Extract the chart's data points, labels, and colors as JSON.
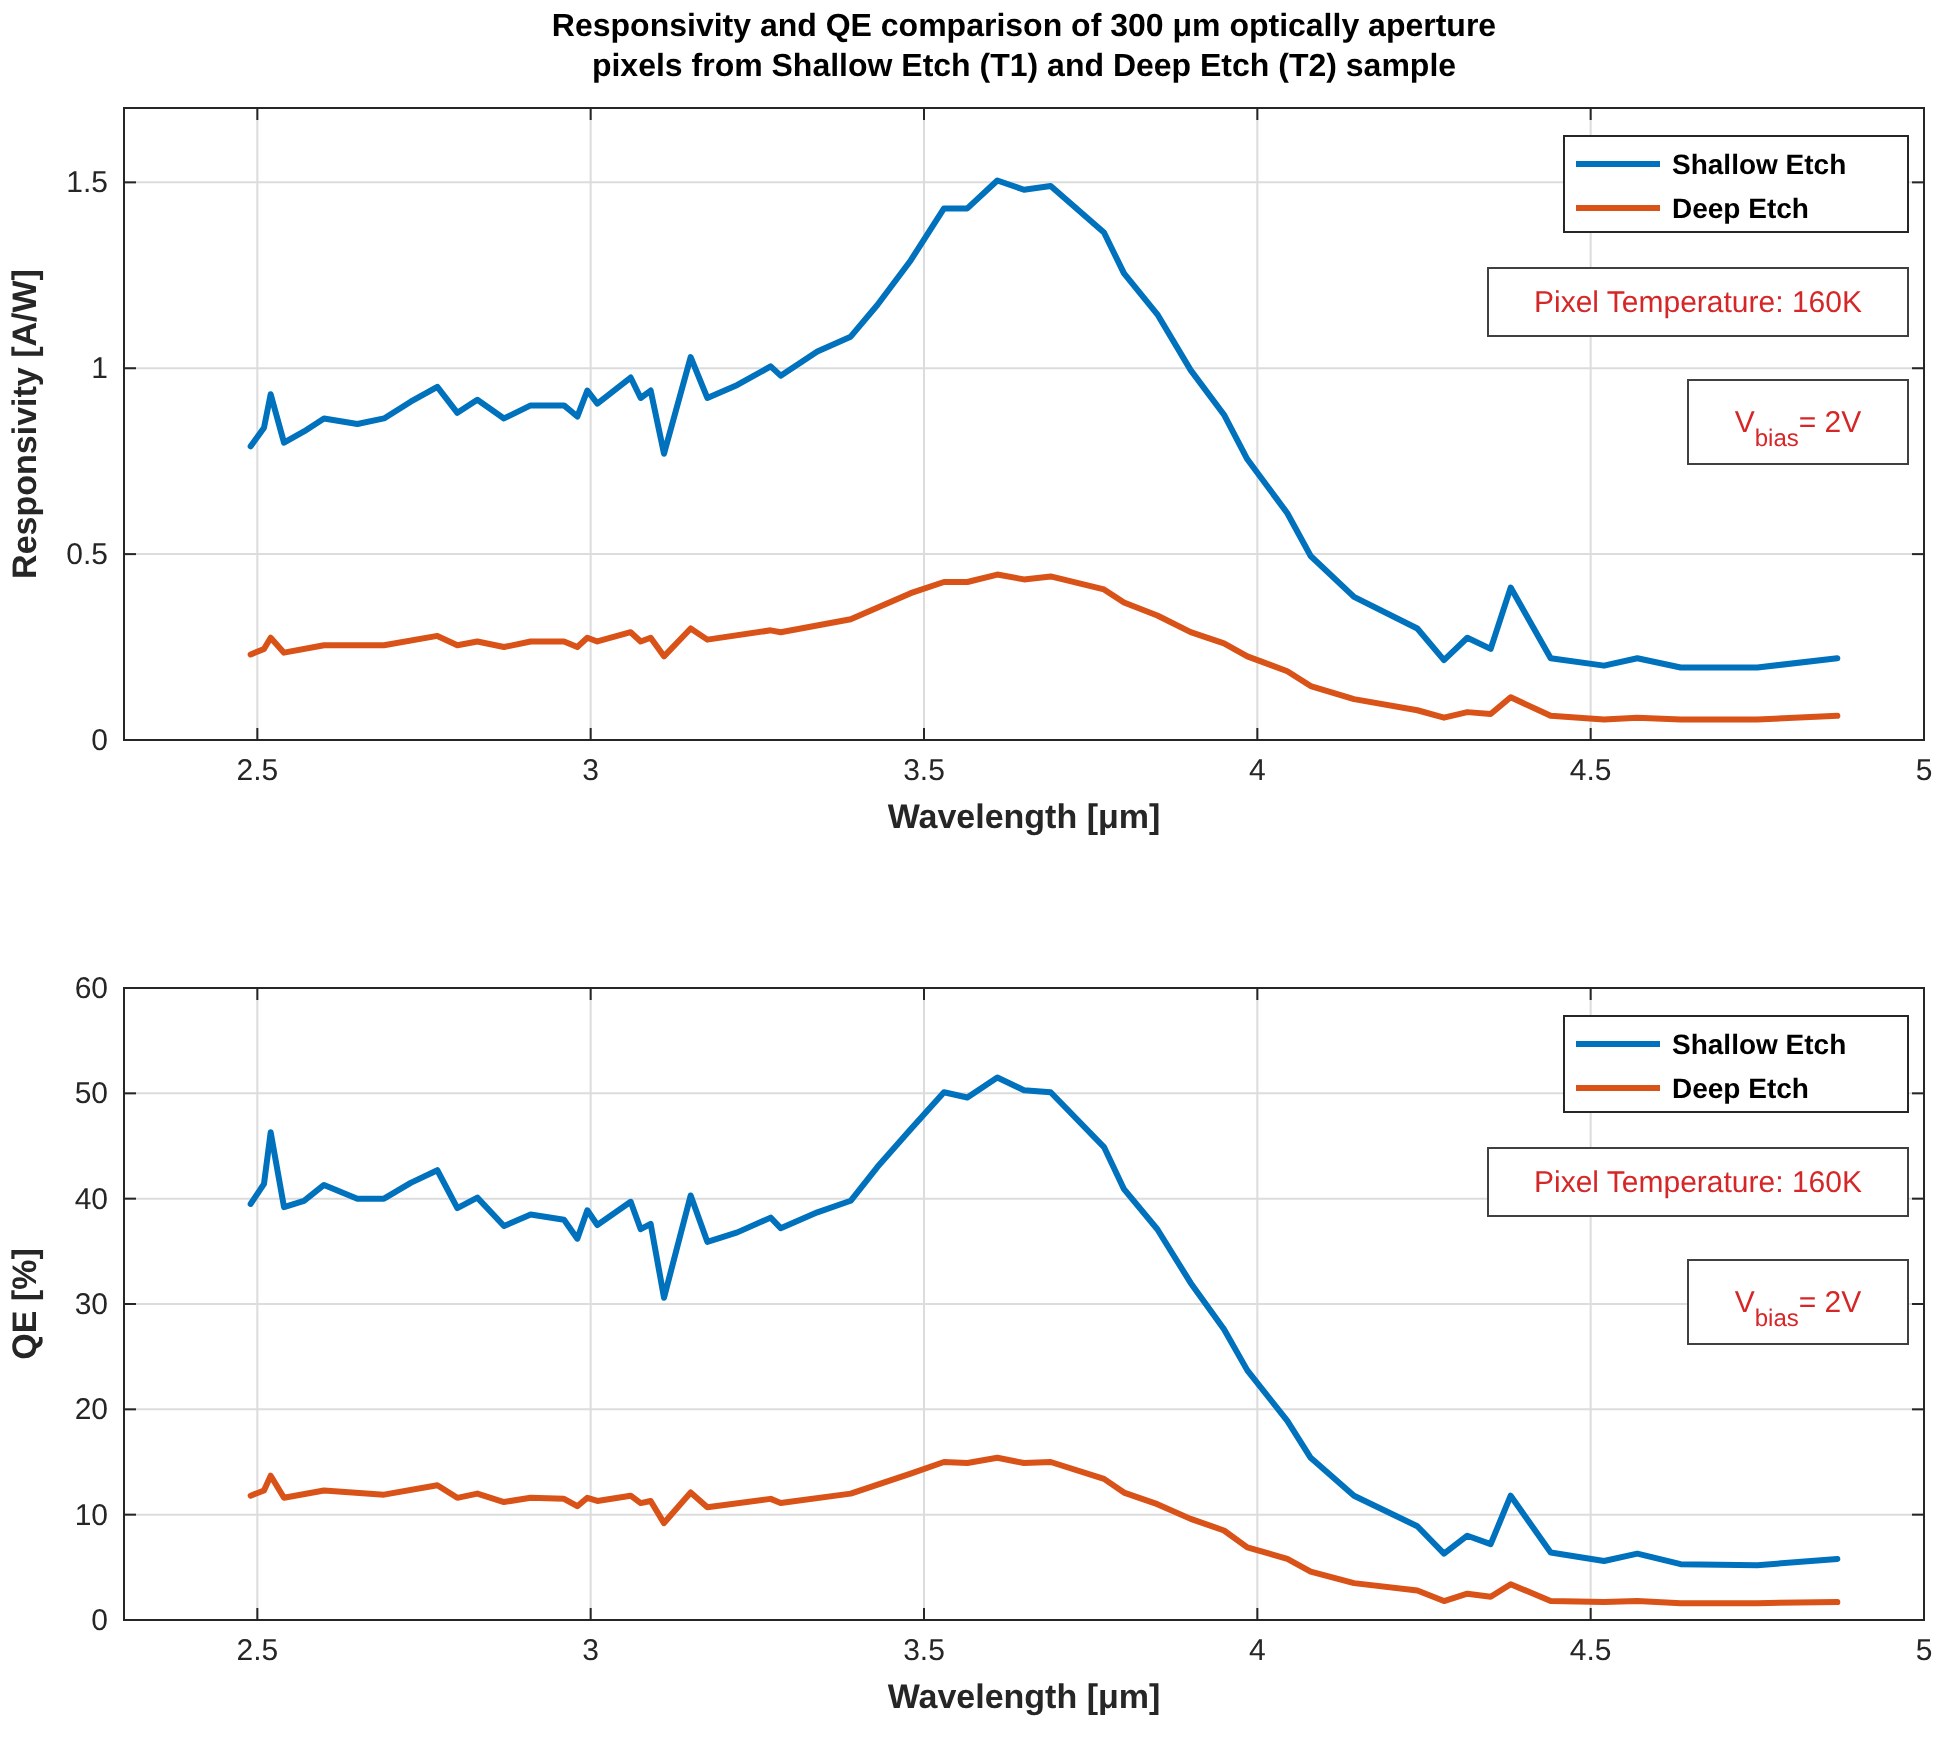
{
  "chart_data": [
    {
      "type": "line",
      "title": "Responsivity and QE comparison of 300 μm optically aperture\npixels from Shallow Etch (T1) and Deep Etch (T2) sample",
      "xlabel": "Wavelength [μm]",
      "ylabel": "Responsivity [A/W]",
      "xlim": [
        2.3,
        5
      ],
      "xticks": [
        2.5,
        3,
        3.5,
        4,
        4.5,
        5
      ],
      "ylim": [
        0,
        1.7
      ],
      "yticks": [
        0,
        0.5,
        1,
        1.5
      ],
      "grid": true,
      "legend": "top right",
      "line_style": "solid",
      "annotations": [
        "Pixel Temperature: 160K",
        "V$_{bias}$= 2V"
      ],
      "series": [
        {
          "name": "Shallow Etch",
          "color": "#0072bd",
          "x": [
            2.49,
            2.51,
            2.52,
            2.54,
            2.57,
            2.6,
            2.65,
            2.69,
            2.73,
            2.77,
            2.8,
            2.83,
            2.87,
            2.91,
            2.96,
            2.98,
            2.995,
            3.01,
            3.06,
            3.075,
            3.09,
            3.11,
            3.15,
            3.175,
            3.22,
            3.27,
            3.285,
            3.34,
            3.39,
            3.43,
            3.48,
            3.53,
            3.565,
            3.61,
            3.65,
            3.69,
            3.77,
            3.8,
            3.85,
            3.9,
            3.95,
            3.985,
            4.045,
            4.08,
            4.145,
            4.24,
            4.28,
            4.315,
            4.35,
            4.38,
            4.44,
            4.52,
            4.57,
            4.635,
            4.75,
            4.87
          ],
          "values": [
            0.79,
            0.84,
            0.93,
            0.8,
            0.83,
            0.865,
            0.85,
            0.865,
            0.91,
            0.95,
            0.88,
            0.915,
            0.865,
            0.9,
            0.9,
            0.87,
            0.94,
            0.905,
            0.975,
            0.92,
            0.94,
            0.77,
            1.03,
            0.92,
            0.955,
            1.005,
            0.98,
            1.045,
            1.085,
            1.17,
            1.29,
            1.43,
            1.43,
            1.505,
            1.48,
            1.49,
            1.365,
            1.255,
            1.145,
            0.995,
            0.875,
            0.755,
            0.61,
            0.495,
            0.385,
            0.3,
            0.215,
            0.275,
            0.245,
            0.41,
            0.22,
            0.2,
            0.22,
            0.195,
            0.195,
            0.22
          ]
        },
        {
          "name": "Deep Etch",
          "color": "#d95319",
          "x": [
            2.49,
            2.51,
            2.52,
            2.54,
            2.6,
            2.69,
            2.77,
            2.8,
            2.83,
            2.87,
            2.91,
            2.96,
            2.98,
            2.995,
            3.01,
            3.06,
            3.075,
            3.09,
            3.11,
            3.15,
            3.175,
            3.27,
            3.285,
            3.39,
            3.48,
            3.53,
            3.565,
            3.61,
            3.65,
            3.69,
            3.77,
            3.8,
            3.85,
            3.9,
            3.95,
            3.985,
            4.045,
            4.08,
            4.145,
            4.24,
            4.28,
            4.315,
            4.35,
            4.38,
            4.44,
            4.52,
            4.57,
            4.635,
            4.75,
            4.87
          ],
          "values": [
            0.23,
            0.245,
            0.275,
            0.235,
            0.255,
            0.255,
            0.28,
            0.255,
            0.265,
            0.25,
            0.265,
            0.265,
            0.25,
            0.275,
            0.265,
            0.29,
            0.265,
            0.275,
            0.225,
            0.3,
            0.27,
            0.295,
            0.29,
            0.325,
            0.395,
            0.425,
            0.425,
            0.445,
            0.432,
            0.44,
            0.405,
            0.37,
            0.335,
            0.29,
            0.26,
            0.225,
            0.185,
            0.145,
            0.11,
            0.08,
            0.06,
            0.075,
            0.07,
            0.115,
            0.065,
            0.055,
            0.06,
            0.055,
            0.055,
            0.065
          ]
        }
      ]
    },
    {
      "type": "line",
      "xlabel": "Wavelength [μm]",
      "ylabel": "QE [%]",
      "xlim": [
        2.3,
        5
      ],
      "xticks": [
        2.5,
        3,
        3.5,
        4,
        4.5,
        5
      ],
      "ylim": [
        0,
        60
      ],
      "yticks": [
        0,
        10,
        20,
        30,
        40,
        50,
        60
      ],
      "grid": true,
      "legend": "top right",
      "line_style": "solid",
      "annotations": [
        "Pixel Temperature: 160K",
        "V$_{bias}$= 2V"
      ],
      "series": [
        {
          "name": "Shallow Etch",
          "color": "#0072bd",
          "x": [
            2.49,
            2.51,
            2.52,
            2.54,
            2.57,
            2.6,
            2.65,
            2.69,
            2.73,
            2.77,
            2.8,
            2.83,
            2.87,
            2.91,
            2.96,
            2.98,
            2.995,
            3.01,
            3.06,
            3.075,
            3.09,
            3.11,
            3.15,
            3.175,
            3.22,
            3.27,
            3.285,
            3.34,
            3.39,
            3.43,
            3.48,
            3.53,
            3.565,
            3.61,
            3.65,
            3.69,
            3.77,
            3.8,
            3.85,
            3.9,
            3.95,
            3.985,
            4.045,
            4.08,
            4.145,
            4.24,
            4.28,
            4.315,
            4.35,
            4.38,
            4.44,
            4.52,
            4.57,
            4.635,
            4.75,
            4.87
          ],
          "values": [
            39.5,
            41.4,
            46.3,
            39.2,
            39.8,
            41.3,
            40,
            40,
            41.5,
            42.7,
            39.1,
            40.1,
            37.4,
            38.5,
            38,
            36.2,
            38.9,
            37.5,
            39.7,
            37.1,
            37.6,
            30.6,
            40.3,
            35.9,
            36.8,
            38.2,
            37.2,
            38.7,
            39.8,
            43,
            46.6,
            50.1,
            49.6,
            51.5,
            50.3,
            50.1,
            44.9,
            40.9,
            37.1,
            32,
            27.6,
            23.7,
            18.9,
            15.4,
            11.8,
            8.9,
            6.3,
            8,
            7.2,
            11.8,
            6.4,
            5.6,
            6.3,
            5.3,
            5.2,
            5.8
          ]
        },
        {
          "name": "Deep Etch",
          "color": "#d95319",
          "x": [
            2.49,
            2.51,
            2.52,
            2.54,
            2.6,
            2.69,
            2.77,
            2.8,
            2.83,
            2.87,
            2.91,
            2.96,
            2.98,
            2.995,
            3.01,
            3.06,
            3.075,
            3.09,
            3.11,
            3.15,
            3.175,
            3.27,
            3.285,
            3.39,
            3.48,
            3.53,
            3.565,
            3.61,
            3.65,
            3.69,
            3.77,
            3.8,
            3.85,
            3.9,
            3.95,
            3.985,
            4.045,
            4.08,
            4.145,
            4.24,
            4.28,
            4.315,
            4.35,
            4.38,
            4.44,
            4.52,
            4.57,
            4.635,
            4.75,
            4.87
          ],
          "values": [
            11.8,
            12.3,
            13.7,
            11.6,
            12.3,
            11.9,
            12.8,
            11.6,
            12,
            11.2,
            11.6,
            11.5,
            10.8,
            11.6,
            11.3,
            11.8,
            11.1,
            11.3,
            9.2,
            12.1,
            10.7,
            11.5,
            11.1,
            12,
            13.9,
            15,
            14.9,
            15.4,
            14.9,
            15,
            13.4,
            12.1,
            11,
            9.6,
            8.5,
            6.9,
            5.8,
            4.6,
            3.5,
            2.8,
            1.8,
            2.5,
            2.2,
            3.4,
            1.8,
            1.7,
            1.8,
            1.6,
            1.6,
            1.7
          ]
        }
      ]
    }
  ]
}
